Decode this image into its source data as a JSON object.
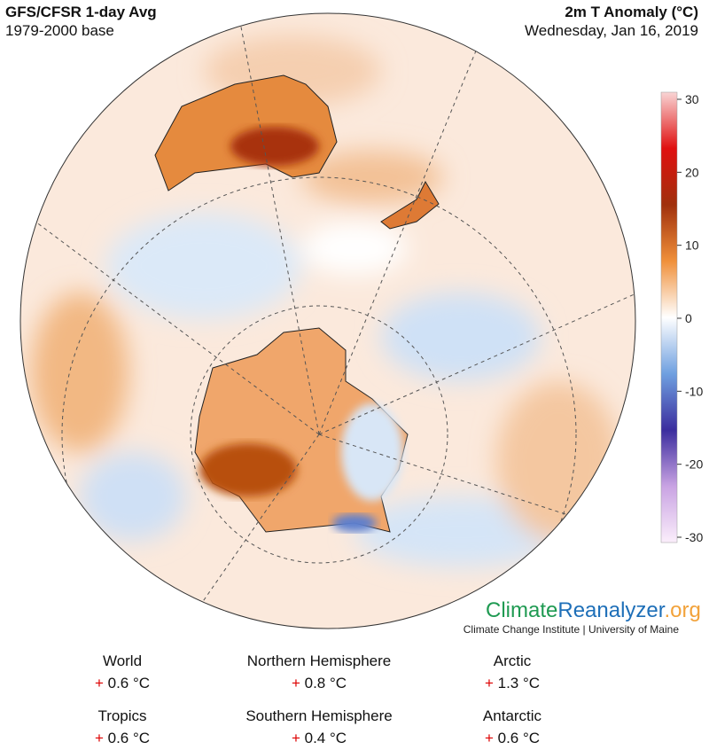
{
  "header": {
    "title": "GFS/CFSR 1-day Avg",
    "subtitle": "1979-2000 base",
    "variable": "2m T Anomaly (°C)",
    "date": "Wednesday, Jan 16, 2019"
  },
  "colorbar": {
    "lim": [
      -30,
      30
    ],
    "ticks": [
      30,
      20,
      10,
      0,
      -10,
      -20,
      -30
    ],
    "colors": [
      "#fbeefb",
      "#c9a3e3",
      "#3b2d9e",
      "#6fa0e0",
      "#ffffff",
      "#f0903a",
      "#a0300c",
      "#e01010",
      "#f9d5d5"
    ]
  },
  "logo": {
    "parts": [
      "Climate",
      "Reanalyzer",
      ".org"
    ],
    "tagline": "Climate Change Institute | University of Maine"
  },
  "stats": [
    {
      "region": "World",
      "sign": "+",
      "value": "0.6 °C"
    },
    {
      "region": "Northern Hemisphere",
      "sign": "+",
      "value": "0.8 °C"
    },
    {
      "region": "Arctic",
      "sign": "+",
      "value": "1.3 °C"
    },
    {
      "region": "Tropics",
      "sign": "+",
      "value": "0.6 °C"
    },
    {
      "region": "Southern Hemisphere",
      "sign": "+",
      "value": "0.4 °C"
    },
    {
      "region": "Antarctic",
      "sign": "+",
      "value": "0.6 °C"
    }
  ]
}
